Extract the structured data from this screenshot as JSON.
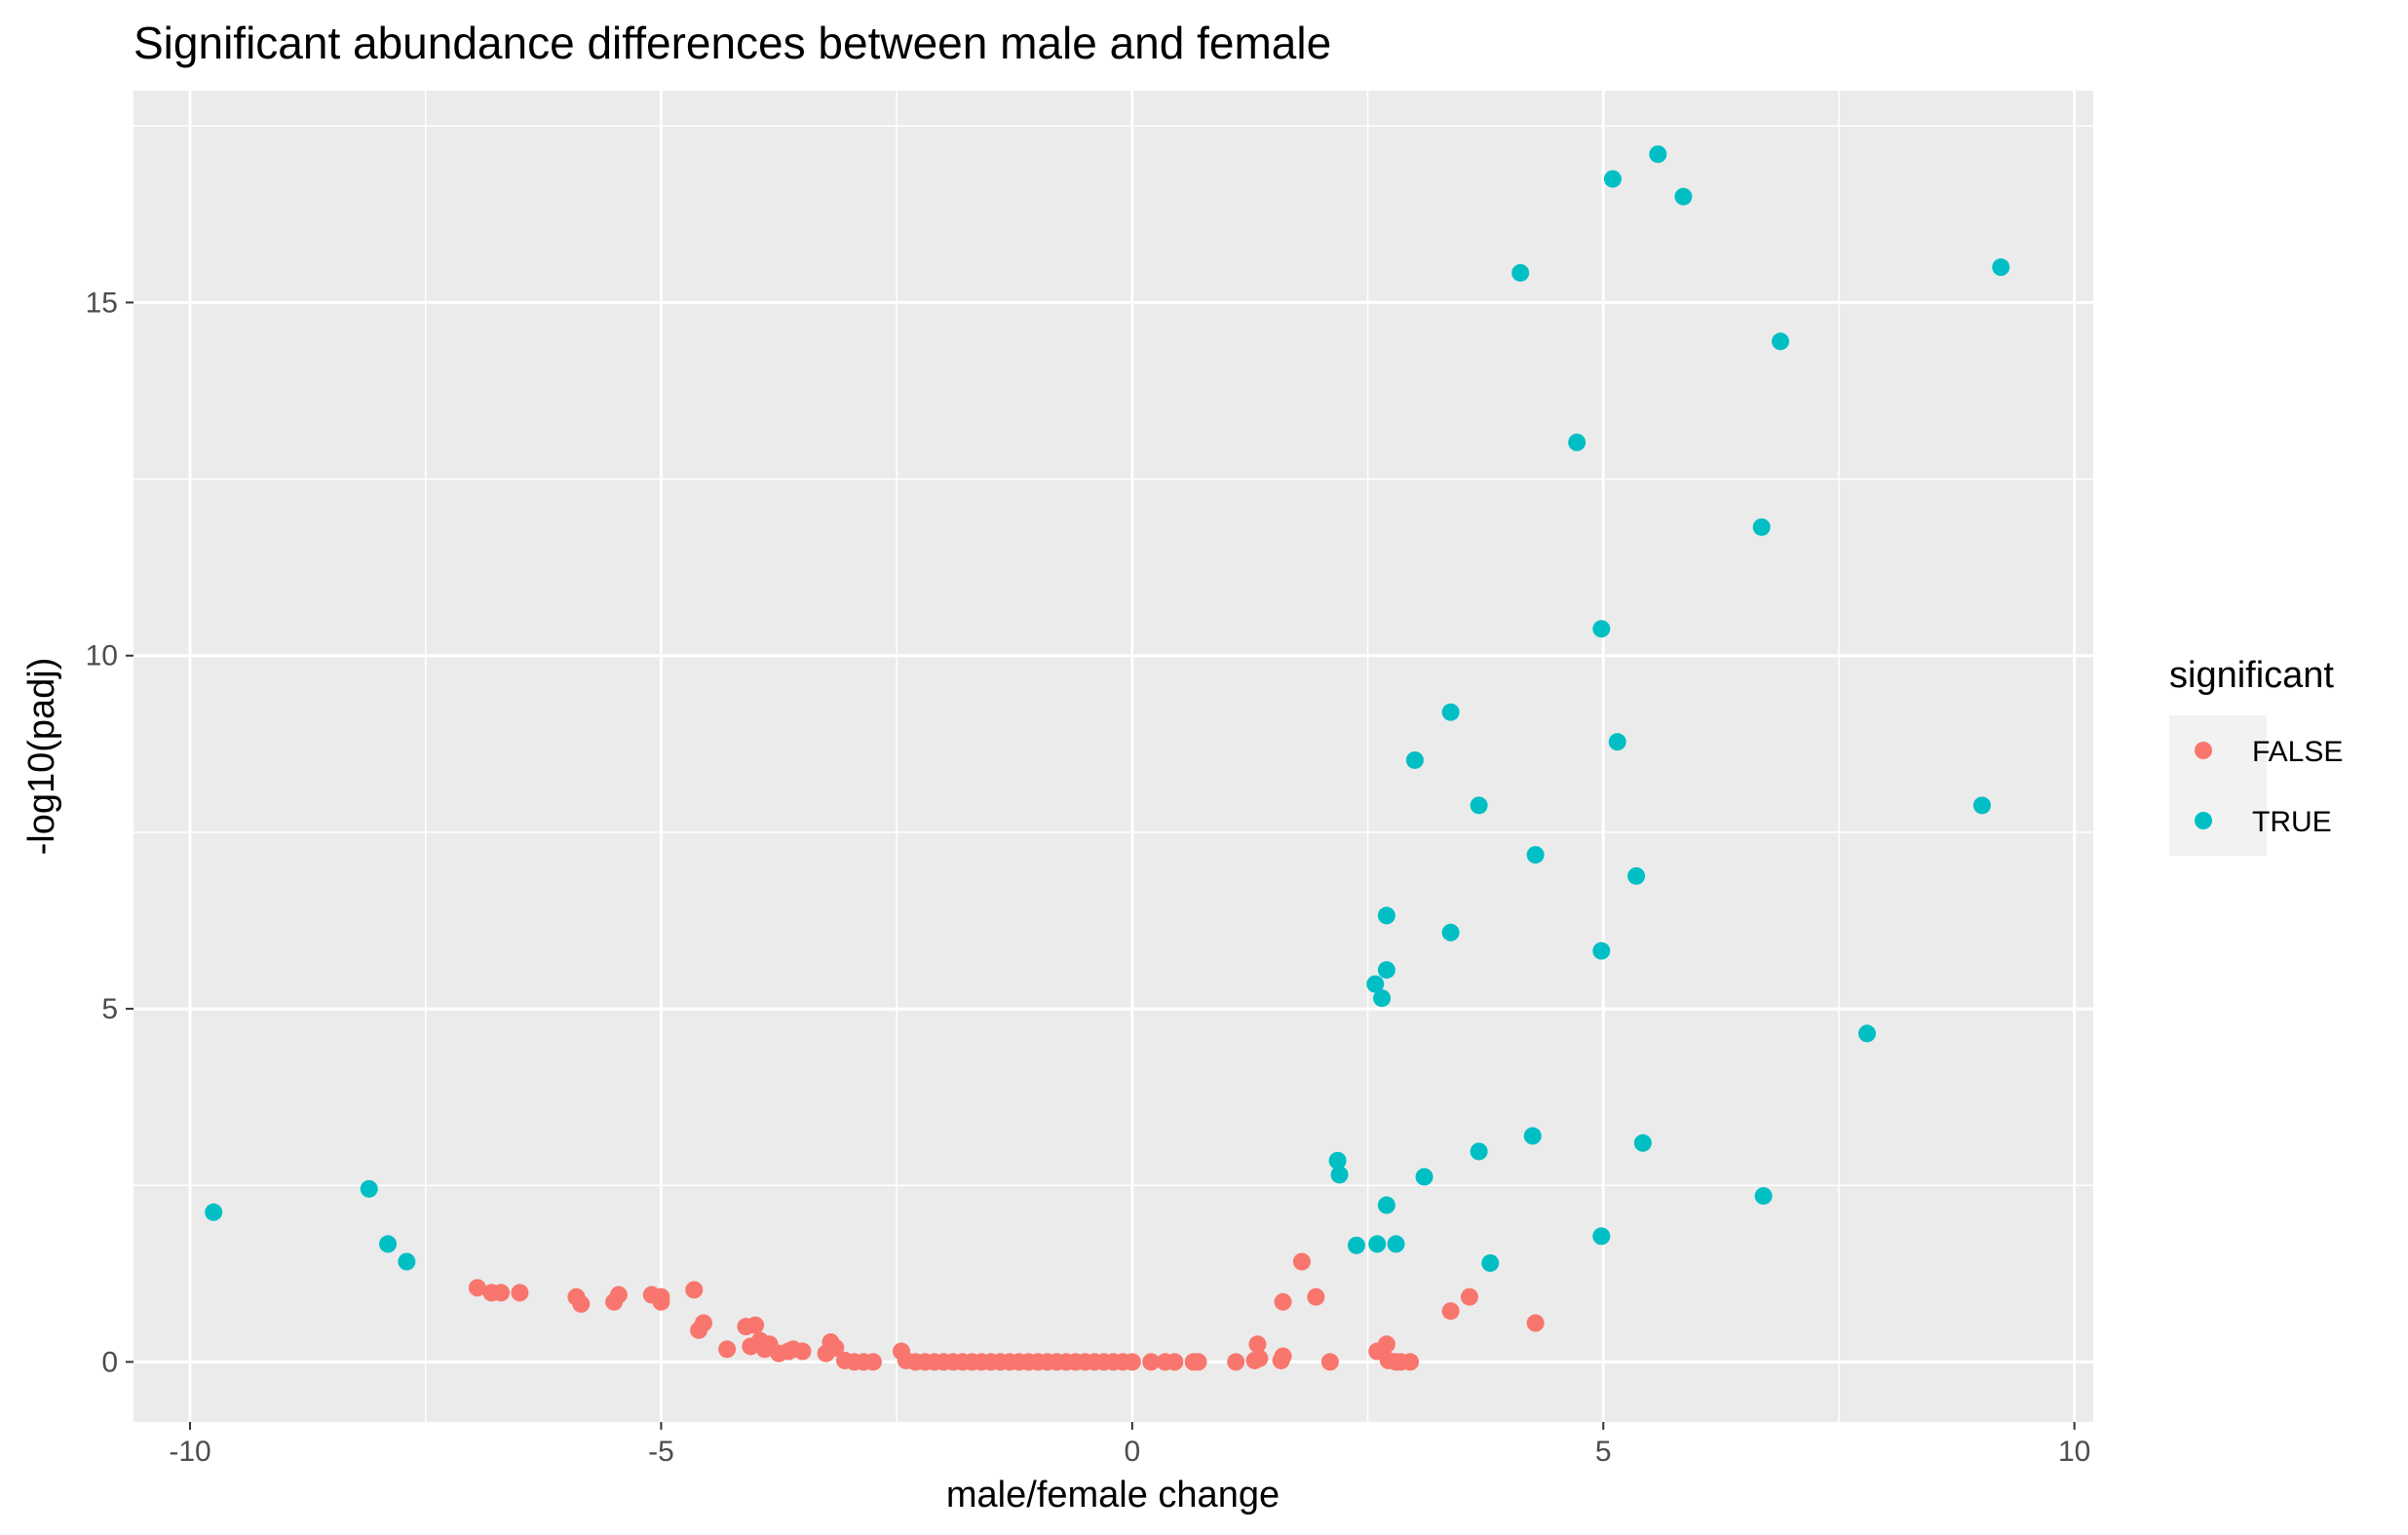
{
  "chart_data": {
    "type": "scatter",
    "title": "Significant abundance differences between male and female",
    "xlabel": "male/female change",
    "ylabel": "-log10(padj)",
    "xlim": [
      -10.6,
      10.2
    ],
    "ylim": [
      -0.85,
      18.0
    ],
    "x_ticks": [
      -10,
      -5,
      0,
      5,
      10
    ],
    "x_tick_labels": [
      "-10",
      "-5",
      "0",
      "5",
      "10"
    ],
    "y_ticks": [
      0,
      5,
      10,
      15
    ],
    "y_tick_labels": [
      "0",
      "5",
      "10",
      "15"
    ],
    "grid": true,
    "legend": {
      "title": "significant",
      "placement": "right",
      "entries": [
        {
          "label": "FALSE",
          "color": "#F8766D"
        },
        {
          "label": "TRUE",
          "color": "#00BFC4"
        }
      ]
    },
    "series": [
      {
        "name": "FALSE",
        "color": "#F8766D",
        "points": [
          [
            -6.95,
            1.05
          ],
          [
            -6.8,
            0.98
          ],
          [
            -6.7,
            0.98
          ],
          [
            -6.5,
            0.98
          ],
          [
            -5.9,
            0.92
          ],
          [
            -5.85,
            0.82
          ],
          [
            -5.5,
            0.85
          ],
          [
            -5.45,
            0.95
          ],
          [
            -5.1,
            0.95
          ],
          [
            -5.0,
            0.85
          ],
          [
            -5.0,
            0.92
          ],
          [
            -4.65,
            1.02
          ],
          [
            -4.6,
            0.45
          ],
          [
            -4.55,
            0.55
          ],
          [
            -4.3,
            0.18
          ],
          [
            -4.1,
            0.5
          ],
          [
            -4.05,
            0.22
          ],
          [
            -4.0,
            0.52
          ],
          [
            -3.95,
            0.3
          ],
          [
            -3.9,
            0.18
          ],
          [
            -3.85,
            0.25
          ],
          [
            -3.75,
            0.12
          ],
          [
            -3.65,
            0.15
          ],
          [
            -3.6,
            0.18
          ],
          [
            -3.5,
            0.15
          ],
          [
            -3.25,
            0.12
          ],
          [
            -3.2,
            0.28
          ],
          [
            -3.15,
            0.2
          ],
          [
            -3.05,
            0.02
          ],
          [
            -2.95,
            0.0
          ],
          [
            -2.85,
            0.0
          ],
          [
            -2.75,
            0.0
          ],
          [
            -2.45,
            0.15
          ],
          [
            -2.4,
            0.02
          ],
          [
            -2.3,
            0.0
          ],
          [
            -2.2,
            0.0
          ],
          [
            -2.1,
            0.0
          ],
          [
            -2.0,
            0.0
          ],
          [
            -1.9,
            0.0
          ],
          [
            -1.8,
            0.0
          ],
          [
            -1.7,
            0.0
          ],
          [
            -1.6,
            0.0
          ],
          [
            -1.5,
            0.0
          ],
          [
            -1.4,
            0.0
          ],
          [
            -1.3,
            0.0
          ],
          [
            -1.2,
            0.0
          ],
          [
            -1.1,
            0.0
          ],
          [
            -1.0,
            0.0
          ],
          [
            -0.9,
            0.0
          ],
          [
            -0.8,
            0.0
          ],
          [
            -0.7,
            0.0
          ],
          [
            -0.6,
            0.0
          ],
          [
            -0.5,
            0.0
          ],
          [
            -0.4,
            0.0
          ],
          [
            -0.3,
            0.0
          ],
          [
            -0.2,
            0.0
          ],
          [
            -0.1,
            0.0
          ],
          [
            0.0,
            0.0
          ],
          [
            0.2,
            0.0
          ],
          [
            0.35,
            0.0
          ],
          [
            0.45,
            0.0
          ],
          [
            0.65,
            0.0
          ],
          [
            0.7,
            0.0
          ],
          [
            1.1,
            0.0
          ],
          [
            1.3,
            0.02
          ],
          [
            1.35,
            0.05
          ],
          [
            1.33,
            0.25
          ],
          [
            1.58,
            0.02
          ],
          [
            1.6,
            0.08
          ],
          [
            1.6,
            0.85
          ],
          [
            1.8,
            1.42
          ],
          [
            1.95,
            0.92
          ],
          [
            2.1,
            0.0
          ],
          [
            2.6,
            0.15
          ],
          [
            2.7,
            0.25
          ],
          [
            2.72,
            0.02
          ],
          [
            2.8,
            0.0
          ],
          [
            2.85,
            0.0
          ],
          [
            2.95,
            0.0
          ],
          [
            3.38,
            0.72
          ],
          [
            3.58,
            0.92
          ],
          [
            4.28,
            0.55
          ]
        ]
      },
      {
        "name": "TRUE",
        "color": "#00BFC4",
        "points": [
          [
            -9.75,
            2.12
          ],
          [
            -8.1,
            2.45
          ],
          [
            -7.9,
            1.67
          ],
          [
            -7.7,
            1.42
          ],
          [
            2.18,
            2.85
          ],
          [
            2.2,
            2.65
          ],
          [
            2.38,
            1.65
          ],
          [
            2.58,
            5.35
          ],
          [
            2.6,
            1.67
          ],
          [
            2.65,
            5.15
          ],
          [
            2.7,
            2.22
          ],
          [
            2.7,
            5.55
          ],
          [
            2.7,
            6.32
          ],
          [
            2.8,
            1.67
          ],
          [
            3.0,
            8.52
          ],
          [
            3.1,
            2.62
          ],
          [
            3.38,
            9.2
          ],
          [
            3.38,
            6.08
          ],
          [
            3.68,
            2.98
          ],
          [
            3.68,
            7.88
          ],
          [
            3.8,
            1.4
          ],
          [
            4.12,
            15.42
          ],
          [
            4.25,
            3.2
          ],
          [
            4.28,
            7.18
          ],
          [
            4.72,
            13.02
          ],
          [
            4.98,
            10.38
          ],
          [
            4.98,
            5.82
          ],
          [
            4.98,
            1.78
          ],
          [
            5.1,
            16.75
          ],
          [
            5.15,
            8.78
          ],
          [
            5.35,
            6.88
          ],
          [
            5.42,
            3.1
          ],
          [
            5.58,
            17.1
          ],
          [
            5.85,
            16.5
          ],
          [
            6.68,
            11.82
          ],
          [
            6.7,
            2.35
          ],
          [
            6.88,
            14.45
          ],
          [
            7.8,
            4.65
          ],
          [
            9.02,
            7.88
          ],
          [
            9.22,
            15.5
          ]
        ]
      }
    ]
  }
}
